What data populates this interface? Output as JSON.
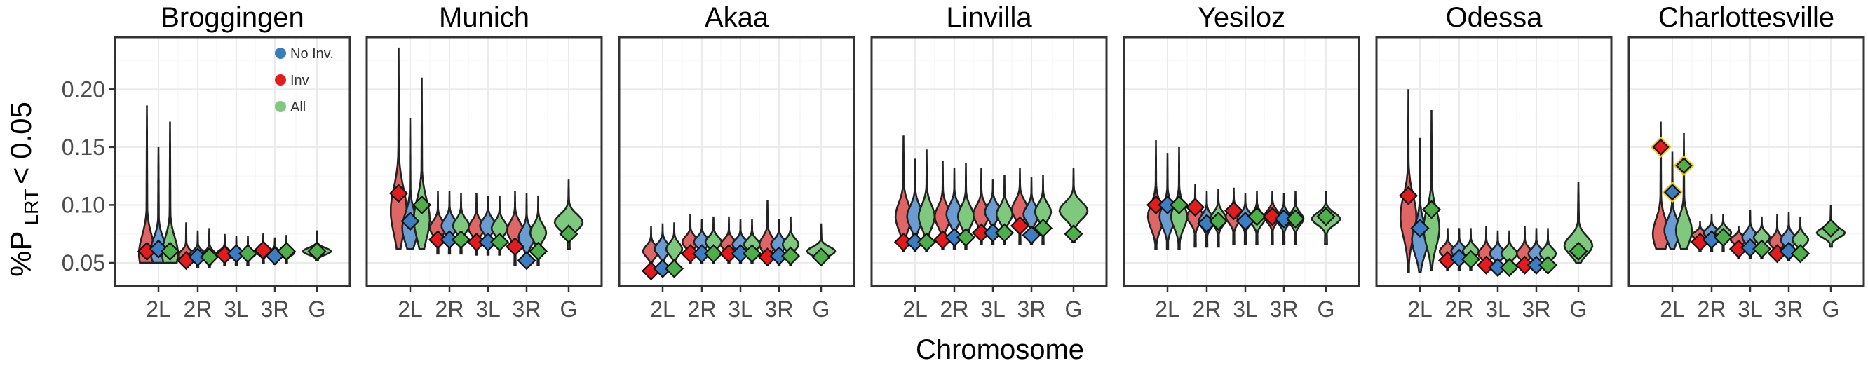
{
  "chart_data": {
    "type": "violin",
    "ylabel_main": "%P",
    "ylabel_sub": "LRT",
    "ylabel_tail": "< 0.05",
    "xlabel": "Chromosome",
    "ylim": [
      0.03,
      0.245
    ],
    "yticks": [
      0.05,
      0.1,
      0.15,
      0.2
    ],
    "ytick_labels": [
      "0.05",
      "0.10",
      "0.15",
      "0.20"
    ],
    "categories": [
      "2L",
      "2R",
      "3L",
      "3R",
      "G"
    ],
    "legend": [
      {
        "name": "No Inv.",
        "color": "#377eb8"
      },
      {
        "name": "Inv",
        "color": "#e41a1c"
      },
      {
        "name": "All",
        "color": "#7fc97f"
      }
    ],
    "colors": {
      "noinv": "#6a9bd1",
      "inv": "#e06666",
      "all": "#7fc97f",
      "noinv_mean": "#3a7dc2",
      "inv_mean": "#e41a1c",
      "all_mean": "#4daf4a",
      "highlight": "#f5c518"
    },
    "panels": [
      {
        "name": "Broggingen",
        "chrom": [
          {
            "inv": [
              0.06,
              0.05,
              0.186,
              0.058
            ],
            "noinv": [
              0.062,
              0.05,
              0.15,
              0.06
            ],
            "all": [
              0.06,
              0.05,
              0.172,
              0.058
            ]
          },
          {
            "inv": [
              0.052,
              0.046,
              0.085,
              0.056
            ],
            "noinv": [
              0.055,
              0.046,
              0.078,
              0.057
            ],
            "all": [
              0.055,
              0.046,
              0.08,
              0.056
            ]
          },
          {
            "inv": [
              0.057,
              0.048,
              0.075,
              0.058
            ],
            "noinv": [
              0.058,
              0.048,
              0.073,
              0.058
            ],
            "all": [
              0.058,
              0.048,
              0.073,
              0.058
            ]
          },
          {
            "inv": [
              0.061,
              0.05,
              0.076,
              0.06
            ],
            "noinv": [
              0.056,
              0.049,
              0.072,
              0.058
            ],
            "all": [
              0.06,
              0.05,
              0.074,
              0.059
            ]
          }
        ],
        "G": [
          0.06,
          0.052,
          0.078,
          0.06
        ]
      },
      {
        "name": "Munich",
        "chrom": [
          {
            "inv": [
              0.11,
              0.062,
              0.236,
              0.095
            ],
            "noinv": [
              0.086,
              0.062,
              0.175,
              0.08
            ],
            "all": [
              0.1,
              0.062,
              0.21,
              0.088
            ]
          },
          {
            "inv": [
              0.07,
              0.058,
              0.112,
              0.08
            ],
            "noinv": [
              0.07,
              0.058,
              0.112,
              0.082
            ],
            "all": [
              0.07,
              0.058,
              0.11,
              0.082
            ]
          },
          {
            "inv": [
              0.068,
              0.057,
              0.11,
              0.08
            ],
            "noinv": [
              0.068,
              0.057,
              0.108,
              0.082
            ],
            "all": [
              0.068,
              0.057,
              0.108,
              0.08
            ]
          },
          {
            "inv": [
              0.064,
              0.048,
              0.112,
              0.078
            ],
            "noinv": [
              0.052,
              0.046,
              0.11,
              0.072
            ],
            "all": [
              0.06,
              0.048,
              0.108,
              0.076
            ]
          }
        ],
        "G": [
          0.075,
          0.062,
          0.122,
          0.085
        ]
      },
      {
        "name": "Akaa",
        "chrom": [
          {
            "inv": [
              0.043,
              0.04,
              0.082,
              0.06
            ],
            "noinv": [
              0.045,
              0.04,
              0.084,
              0.062
            ],
            "all": [
              0.045,
              0.04,
              0.085,
              0.062
            ]
          },
          {
            "inv": [
              0.058,
              0.05,
              0.092,
              0.068
            ],
            "noinv": [
              0.058,
              0.05,
              0.088,
              0.068
            ],
            "all": [
              0.058,
              0.05,
              0.09,
              0.068
            ]
          },
          {
            "inv": [
              0.058,
              0.05,
              0.09,
              0.066
            ],
            "noinv": [
              0.058,
              0.05,
              0.088,
              0.066
            ],
            "all": [
              0.058,
              0.05,
              0.088,
              0.066
            ]
          },
          {
            "inv": [
              0.055,
              0.048,
              0.104,
              0.066
            ],
            "noinv": [
              0.056,
              0.048,
              0.088,
              0.066
            ],
            "all": [
              0.056,
              0.048,
              0.09,
              0.066
            ]
          }
        ],
        "G": [
          0.055,
          0.05,
          0.084,
          0.06
        ]
      },
      {
        "name": "Linvilla",
        "chrom": [
          {
            "inv": [
              0.068,
              0.06,
              0.16,
              0.09
            ],
            "noinv": [
              0.068,
              0.06,
              0.14,
              0.09
            ],
            "all": [
              0.068,
              0.06,
              0.148,
              0.09
            ]
          },
          {
            "inv": [
              0.07,
              0.062,
              0.138,
              0.09
            ],
            "noinv": [
              0.072,
              0.062,
              0.132,
              0.092
            ],
            "all": [
              0.072,
              0.062,
              0.136,
              0.09
            ]
          },
          {
            "inv": [
              0.076,
              0.066,
              0.132,
              0.092
            ],
            "noinv": [
              0.076,
              0.066,
              0.122,
              0.094
            ],
            "all": [
              0.076,
              0.066,
              0.126,
              0.092
            ]
          },
          {
            "inv": [
              0.082,
              0.066,
              0.132,
              0.096
            ],
            "noinv": [
              0.074,
              0.066,
              0.124,
              0.092
            ],
            "all": [
              0.08,
              0.066,
              0.126,
              0.094
            ]
          }
        ],
        "G": [
          0.075,
          0.068,
          0.132,
          0.095
        ]
      },
      {
        "name": "Yesiloz",
        "chrom": [
          {
            "inv": [
              0.1,
              0.062,
              0.156,
              0.09
            ],
            "noinv": [
              0.1,
              0.062,
              0.145,
              0.09
            ],
            "all": [
              0.1,
              0.062,
              0.15,
              0.09
            ]
          },
          {
            "inv": [
              0.098,
              0.064,
              0.118,
              0.09
            ],
            "noinv": [
              0.084,
              0.064,
              0.112,
              0.086
            ],
            "all": [
              0.086,
              0.064,
              0.114,
              0.088
            ]
          },
          {
            "inv": [
              0.095,
              0.066,
              0.115,
              0.09
            ],
            "noinv": [
              0.086,
              0.066,
              0.11,
              0.088
            ],
            "all": [
              0.09,
              0.066,
              0.112,
              0.088
            ]
          },
          {
            "inv": [
              0.09,
              0.066,
              0.112,
              0.09
            ],
            "noinv": [
              0.088,
              0.066,
              0.11,
              0.088
            ],
            "all": [
              0.088,
              0.066,
              0.112,
              0.088
            ]
          }
        ],
        "G": [
          0.09,
          0.066,
          0.112,
          0.088
        ]
      },
      {
        "name": "Odessa",
        "chrom": [
          {
            "inv": [
              0.108,
              0.042,
              0.2,
              0.09
            ],
            "noinv": [
              0.08,
              0.042,
              0.158,
              0.07
            ],
            "all": [
              0.096,
              0.044,
              0.182,
              0.08
            ]
          },
          {
            "inv": [
              0.052,
              0.044,
              0.08,
              0.06
            ],
            "noinv": [
              0.054,
              0.044,
              0.08,
              0.06
            ],
            "all": [
              0.053,
              0.044,
              0.08,
              0.06
            ]
          },
          {
            "inv": [
              0.048,
              0.042,
              0.082,
              0.058
            ],
            "noinv": [
              0.046,
              0.042,
              0.078,
              0.058
            ],
            "all": [
              0.046,
              0.042,
              0.078,
              0.058
            ]
          },
          {
            "inv": [
              0.048,
              0.042,
              0.082,
              0.058
            ],
            "noinv": [
              0.048,
              0.042,
              0.08,
              0.058
            ],
            "all": [
              0.048,
              0.042,
              0.08,
              0.058
            ]
          }
        ],
        "G": [
          0.06,
          0.05,
          0.12,
          0.065
        ]
      },
      {
        "name": "Charlottesville",
        "chrom": [
          {
            "inv": [
              0.15,
              0.062,
              0.172,
              0.075
            ],
            "noinv": [
              0.111,
              0.062,
              0.146,
              0.078
            ],
            "all": [
              0.134,
              0.062,
              0.162,
              0.078
            ],
            "highlight": true
          },
          {
            "inv": [
              0.068,
              0.06,
              0.086,
              0.074
            ],
            "noinv": [
              0.07,
              0.06,
              0.092,
              0.076
            ],
            "all": [
              0.072,
              0.06,
              0.092,
              0.076
            ]
          },
          {
            "inv": [
              0.062,
              0.054,
              0.082,
              0.07
            ],
            "noinv": [
              0.063,
              0.054,
              0.096,
              0.072
            ],
            "all": [
              0.062,
              0.054,
              0.09,
              0.072
            ]
          },
          {
            "inv": [
              0.058,
              0.052,
              0.092,
              0.068
            ],
            "noinv": [
              0.06,
              0.052,
              0.094,
              0.07
            ],
            "all": [
              0.058,
              0.052,
              0.09,
              0.07
            ]
          }
        ],
        "G": [
          0.08,
          0.064,
          0.1,
          0.076
        ]
      }
    ]
  }
}
